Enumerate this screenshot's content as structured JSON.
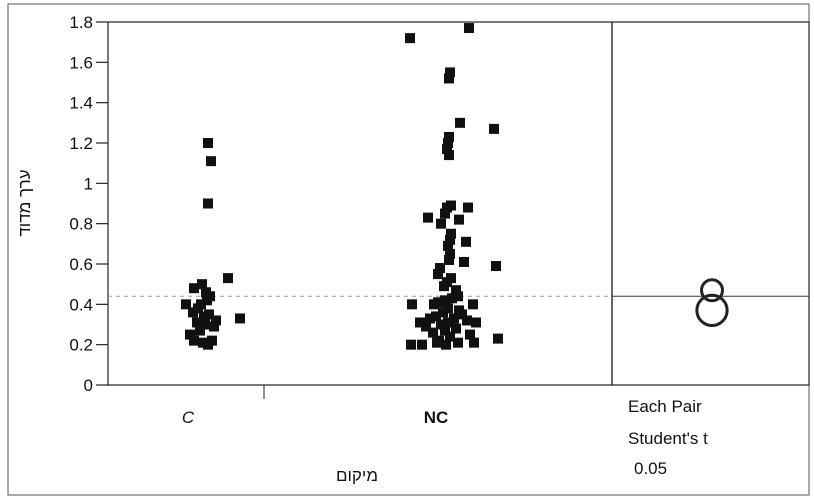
{
  "chart_data": {
    "type": "scatter",
    "title": "",
    "ylabel": "ערך מדוד",
    "xlabel": "מיקום",
    "ylim": [
      0,
      1.8
    ],
    "yticks": [
      0,
      0.2,
      0.4,
      0.6,
      0.8,
      1,
      1.2,
      1.4,
      1.6,
      1.8
    ],
    "ytick_labels": [
      "0",
      "0.2",
      "0.4",
      "0.6",
      "0.8",
      "1",
      "1.2",
      "1.4",
      "1.6",
      "1.8"
    ],
    "categories": [
      "C",
      "NC"
    ],
    "grand_mean": 0.44,
    "grid": false,
    "series": [
      {
        "values": [
          [
            0.2,
            1.2
          ],
          [
            0.23,
            1.11
          ],
          [
            0.2,
            0.9
          ],
          [
            0.4,
            0.53
          ],
          [
            0.14,
            0.5
          ],
          [
            0.06,
            0.48
          ],
          [
            0.18,
            0.46
          ],
          [
            0.22,
            0.44
          ],
          [
            0.19,
            0.42
          ],
          [
            0.13,
            0.4
          ],
          [
            -0.02,
            0.4
          ],
          [
            0.1,
            0.38
          ],
          [
            0.05,
            0.36
          ],
          [
            0.21,
            0.35
          ],
          [
            0.16,
            0.34
          ],
          [
            0.52,
            0.33
          ],
          [
            0.28,
            0.32
          ],
          [
            0.09,
            0.31
          ],
          [
            0.17,
            0.3
          ],
          [
            0.26,
            0.29
          ],
          [
            0.12,
            0.27
          ],
          [
            0.02,
            0.25
          ],
          [
            0.24,
            0.22
          ],
          [
            0.06,
            0.22
          ],
          [
            0.15,
            0.21
          ],
          [
            0.2,
            0.2
          ]
        ]
      },
      {
        "values": [
          [
            -0.26,
            1.72
          ],
          [
            0.33,
            1.77
          ],
          [
            0.14,
            1.55
          ],
          [
            0.13,
            1.52
          ],
          [
            0.24,
            1.3
          ],
          [
            0.58,
            1.27
          ],
          [
            0.13,
            1.23
          ],
          [
            0.12,
            1.2
          ],
          [
            0.11,
            1.17
          ],
          [
            0.13,
            1.14
          ],
          [
            0.15,
            0.89
          ],
          [
            0.11,
            0.88
          ],
          [
            0.32,
            0.88
          ],
          [
            0.09,
            0.85
          ],
          [
            -0.08,
            0.83
          ],
          [
            0.23,
            0.82
          ],
          [
            0.05,
            0.8
          ],
          [
            0.15,
            0.75
          ],
          [
            0.14,
            0.72
          ],
          [
            0.3,
            0.71
          ],
          [
            0.12,
            0.69
          ],
          [
            0.14,
            0.65
          ],
          [
            0.13,
            0.62
          ],
          [
            0.28,
            0.61
          ],
          [
            0.6,
            0.59
          ],
          [
            0.04,
            0.58
          ],
          [
            0.02,
            0.55
          ],
          [
            0.15,
            0.53
          ],
          [
            0.11,
            0.51
          ],
          [
            0.08,
            0.49
          ],
          [
            0.2,
            0.47
          ],
          [
            0.22,
            0.44
          ],
          [
            0.16,
            0.43
          ],
          [
            0.09,
            0.42
          ],
          [
            0.02,
            0.41
          ],
          [
            -0.24,
            0.4
          ],
          [
            -0.02,
            0.4
          ],
          [
            0.37,
            0.4
          ],
          [
            0.12,
            0.38
          ],
          [
            0.23,
            0.37
          ],
          [
            0.07,
            0.36
          ],
          [
            0.26,
            0.35
          ],
          [
            0.0,
            0.34
          ],
          [
            0.18,
            0.33
          ],
          [
            -0.06,
            0.33
          ],
          [
            0.31,
            0.32
          ],
          [
            0.12,
            0.31
          ],
          [
            -0.16,
            0.31
          ],
          [
            0.4,
            0.31
          ],
          [
            0.05,
            0.3
          ],
          [
            -0.1,
            0.29
          ],
          [
            0.2,
            0.28
          ],
          [
            0.09,
            0.27
          ],
          [
            -0.03,
            0.26
          ],
          [
            0.34,
            0.25
          ],
          [
            0.14,
            0.24
          ],
          [
            0.62,
            0.23
          ],
          [
            0.03,
            0.22
          ],
          [
            0.22,
            0.21
          ],
          [
            0.38,
            0.21
          ],
          [
            -0.25,
            0.2
          ],
          [
            -0.14,
            0.2
          ],
          [
            0.1,
            0.2
          ],
          [
            0.01,
            0.21
          ]
        ]
      }
    ],
    "comparison_circles": [
      {
        "center": 0.47,
        "radius": 0.052
      },
      {
        "center": 0.37,
        "radius": 0.075
      }
    ],
    "test_text": [
      "Each Pair",
      "Student's t",
      "0.05"
    ]
  }
}
